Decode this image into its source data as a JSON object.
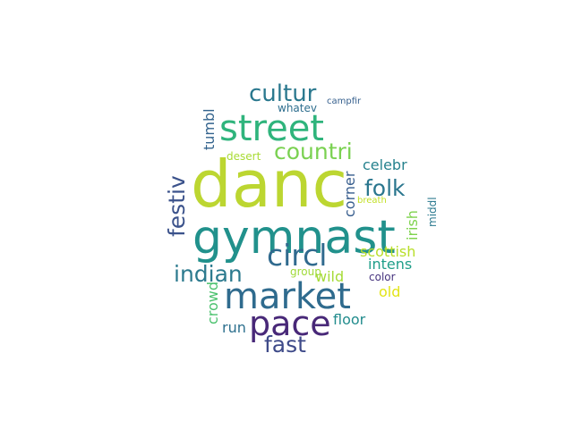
{
  "words": [
    {
      "text": "danc",
      "color": "#bcd631"
    },
    {
      "text": "gymnast",
      "color": "#21918c"
    },
    {
      "text": "market",
      "color": "#2f6b8e"
    },
    {
      "text": "street",
      "color": "#2fb47c"
    },
    {
      "text": "pace",
      "color": "#482878"
    },
    {
      "text": "circl",
      "color": "#306a8e"
    },
    {
      "text": "cultur",
      "color": "#2a788e"
    },
    {
      "text": "countri",
      "color": "#7ad151"
    },
    {
      "text": "indian",
      "color": "#2c7a8e"
    },
    {
      "text": "folk",
      "color": "#2a768e"
    },
    {
      "text": "festiv",
      "color": "#3b528b"
    },
    {
      "text": "fast",
      "color": "#3e4a89"
    },
    {
      "text": "scottish",
      "color": "#b8de29"
    },
    {
      "text": "celebr",
      "color": "#26828e"
    },
    {
      "text": "intens",
      "color": "#1f9e89"
    },
    {
      "text": "corner",
      "color": "#365c8d"
    },
    {
      "text": "irish",
      "color": "#7fd34e"
    },
    {
      "text": "tumbl",
      "color": "#33638d"
    },
    {
      "text": "wild",
      "color": "#a5db36"
    },
    {
      "text": "old",
      "color": "#e2e418"
    },
    {
      "text": "crowd",
      "color": "#4ac16d"
    },
    {
      "text": "run",
      "color": "#2d708e"
    },
    {
      "text": "floor",
      "color": "#228c8d"
    },
    {
      "text": "middl",
      "color": "#2a788e"
    },
    {
      "text": "group",
      "color": "#a0da39"
    },
    {
      "text": "color",
      "color": "#46337e"
    },
    {
      "text": "desert",
      "color": "#a8db34"
    },
    {
      "text": "whatev",
      "color": "#2e6e8e"
    },
    {
      "text": "campfir",
      "color": "#355f8d"
    },
    {
      "text": "breath",
      "color": "#c2df23"
    }
  ]
}
